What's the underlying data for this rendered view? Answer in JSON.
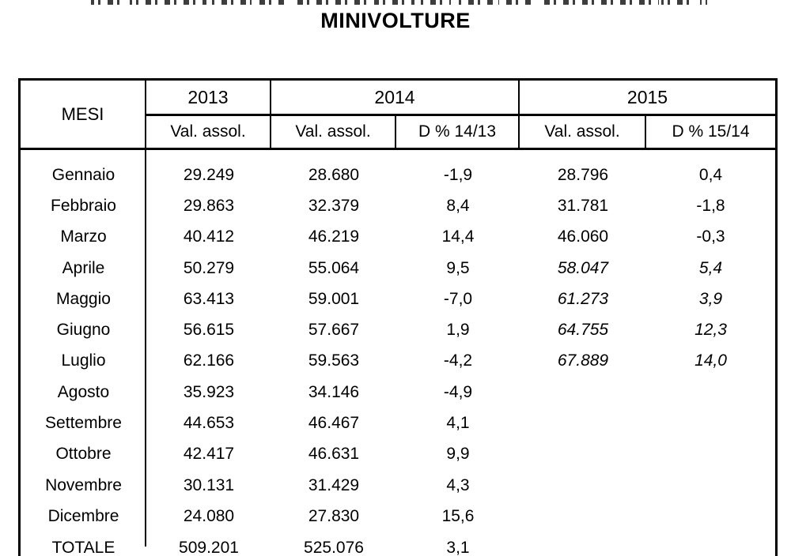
{
  "page": {
    "title": "MINIVOLTURE"
  },
  "table": {
    "col_month_header": "MESI",
    "year_headers": [
      "2013",
      "2014",
      "2015"
    ],
    "sub_headers": {
      "y2013_val": "Val. assol.",
      "y2014_val": "Val. assol.",
      "y2014_delta": "D % 14/13",
      "y2015_val": "Val. assol.",
      "y2015_delta": "D % 15/14"
    },
    "rows": [
      {
        "month": "Gennaio",
        "v2013": "29.249",
        "v2014": "28.680",
        "d1413": "-1,9",
        "v2015": "28.796",
        "d1514": "0,4",
        "italic2015": false
      },
      {
        "month": "Febbraio",
        "v2013": "29.863",
        "v2014": "32.379",
        "d1413": "8,4",
        "v2015": "31.781",
        "d1514": "-1,8",
        "italic2015": false
      },
      {
        "month": "Marzo",
        "v2013": "40.412",
        "v2014": "46.219",
        "d1413": "14,4",
        "v2015": "46.060",
        "d1514": "-0,3",
        "italic2015": false
      },
      {
        "month": "Aprile",
        "v2013": "50.279",
        "v2014": "55.064",
        "d1413": "9,5",
        "v2015": "58.047",
        "d1514": "5,4",
        "italic2015": true
      },
      {
        "month": "Maggio",
        "v2013": "63.413",
        "v2014": "59.001",
        "d1413": "-7,0",
        "v2015": "61.273",
        "d1514": "3,9",
        "italic2015": true
      },
      {
        "month": "Giugno",
        "v2013": "56.615",
        "v2014": "57.667",
        "d1413": "1,9",
        "v2015": "64.755",
        "d1514": "12,3",
        "italic2015": true
      },
      {
        "month": "Luglio",
        "v2013": "62.166",
        "v2014": "59.563",
        "d1413": "-4,2",
        "v2015": "67.889",
        "d1514": "14,0",
        "italic2015": true
      },
      {
        "month": "Agosto",
        "v2013": "35.923",
        "v2014": "34.146",
        "d1413": "-4,9",
        "v2015": "",
        "d1514": "",
        "italic2015": false
      },
      {
        "month": "Settembre",
        "v2013": "44.653",
        "v2014": "46.467",
        "d1413": "4,1",
        "v2015": "",
        "d1514": "",
        "italic2015": false
      },
      {
        "month": "Ottobre",
        "v2013": "42.417",
        "v2014": "46.631",
        "d1413": "9,9",
        "v2015": "",
        "d1514": "",
        "italic2015": false
      },
      {
        "month": "Novembre",
        "v2013": "30.131",
        "v2014": "31.429",
        "d1413": "4,3",
        "v2015": "",
        "d1514": "",
        "italic2015": false
      },
      {
        "month": "Dicembre",
        "v2013": "24.080",
        "v2014": "27.830",
        "d1413": "15,6",
        "v2015": "",
        "d1514": "",
        "italic2015": false
      }
    ],
    "total_row": {
      "month": "TOTALE",
      "v2013": "509.201",
      "v2014": "525.076",
      "d1413": "3,1",
      "v2015": "",
      "d1514": ""
    }
  }
}
